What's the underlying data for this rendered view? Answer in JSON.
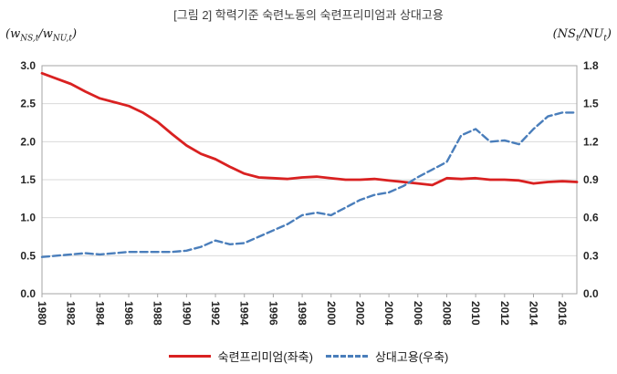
{
  "title": "[그림 2] 학력기준 숙련노동의 숙련프리미엄과 상대고용",
  "left_axis_unit": {
    "p1": "(w",
    "s1": "NS,t",
    "p2": "/w",
    "s2": "NU,t",
    "p3": ")"
  },
  "right_axis_unit": {
    "p1": "(NS",
    "s1": "t",
    "p2": "/NU",
    "s2": "t",
    "p3": ")"
  },
  "legend": [
    {
      "label": "숙련프리미엄(좌축)",
      "color": "#d92121",
      "style": "solid"
    },
    {
      "label": "상대고용(우축)",
      "color": "#4a7ebb",
      "style": "dashed"
    }
  ],
  "chart_data": {
    "type": "line",
    "title": "[그림 2] 학력기준 숙련노동의 숙련프리미엄과 상대고용",
    "x": [
      1980,
      1981,
      1982,
      1983,
      1984,
      1985,
      1986,
      1987,
      1988,
      1989,
      1990,
      1991,
      1992,
      1993,
      1994,
      1995,
      1996,
      1997,
      1998,
      1999,
      2000,
      2001,
      2002,
      2003,
      2004,
      2005,
      2006,
      2007,
      2008,
      2009,
      2010,
      2011,
      2012,
      2013,
      2014,
      2015,
      2016,
      2017
    ],
    "x_tick_labels": [
      "1980",
      "1982",
      "1984",
      "1986",
      "1988",
      "1990",
      "1992",
      "1994",
      "1996",
      "1998",
      "2000",
      "2002",
      "2004",
      "2006",
      "2008",
      "2010",
      "2012",
      "2014",
      "2016"
    ],
    "left_axis": {
      "range": [
        0,
        3.0
      ],
      "ticks": [
        "0.0",
        "0.5",
        "1.0",
        "1.5",
        "2.0",
        "2.5",
        "3.0"
      ]
    },
    "right_axis": {
      "range": [
        0,
        1.8
      ],
      "ticks": [
        "0.0",
        "0.3",
        "0.6",
        "0.9",
        "1.2",
        "1.5",
        "1.8"
      ]
    },
    "grid": true,
    "legend_position": "bottom",
    "series": [
      {
        "name": "숙련프리미엄(좌축)",
        "axis": "left",
        "color": "#d92121",
        "style": "solid",
        "values": [
          2.9,
          2.83,
          2.76,
          2.66,
          2.57,
          2.52,
          2.47,
          2.38,
          2.26,
          2.1,
          1.95,
          1.84,
          1.77,
          1.67,
          1.58,
          1.53,
          1.52,
          1.51,
          1.53,
          1.54,
          1.52,
          1.5,
          1.5,
          1.51,
          1.49,
          1.47,
          1.45,
          1.43,
          1.52,
          1.51,
          1.52,
          1.5,
          1.5,
          1.49,
          1.45,
          1.47,
          1.48,
          1.47
        ]
      },
      {
        "name": "상대고용(우축)",
        "axis": "right",
        "color": "#4a7ebb",
        "style": "dashed",
        "values": [
          0.29,
          0.3,
          0.31,
          0.32,
          0.31,
          0.32,
          0.33,
          0.33,
          0.33,
          0.33,
          0.34,
          0.37,
          0.42,
          0.39,
          0.4,
          0.45,
          0.5,
          0.55,
          0.62,
          0.64,
          0.62,
          0.68,
          0.74,
          0.78,
          0.8,
          0.85,
          0.92,
          0.98,
          1.04,
          1.25,
          1.3,
          1.2,
          1.21,
          1.18,
          1.3,
          1.4,
          1.43,
          1.43
        ]
      }
    ]
  }
}
